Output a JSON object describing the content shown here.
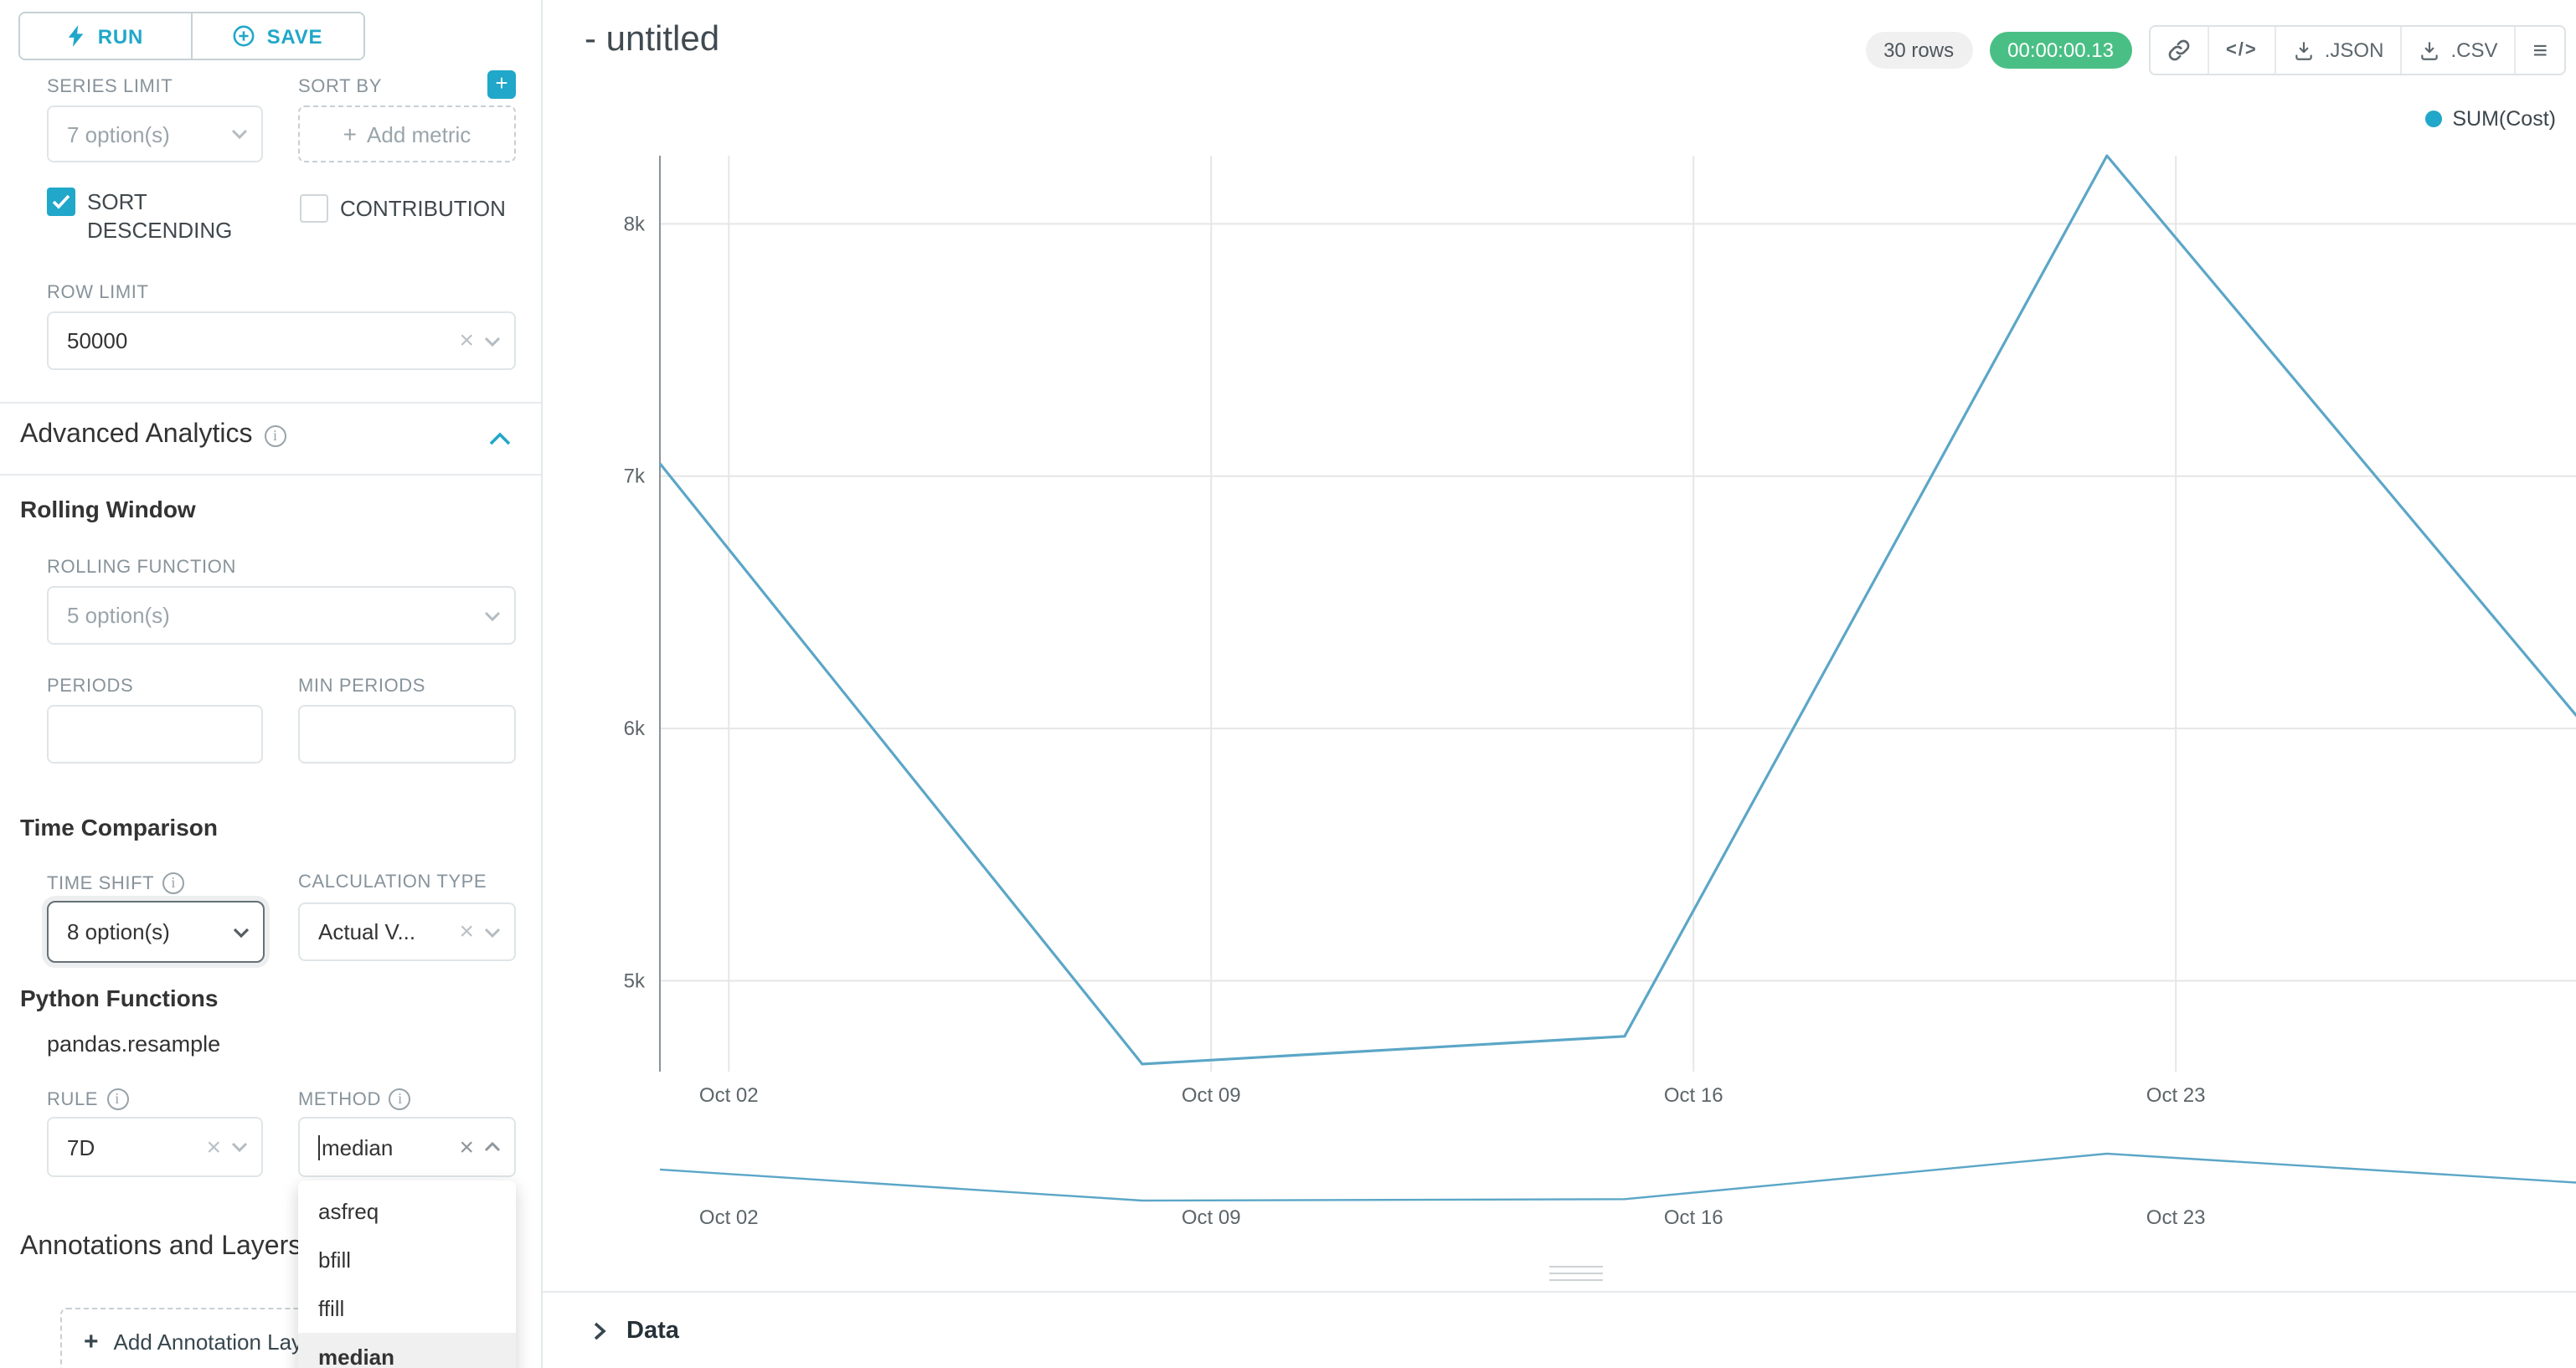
{
  "accent": {
    "primary": "#20a7c9",
    "timer_bg": "#4abf85"
  },
  "toolbar": {
    "run_label": "RUN",
    "save_label": "SAVE"
  },
  "sidebar": {
    "series_limit": {
      "label": "SERIES LIMIT",
      "value": "7 option(s)"
    },
    "sort_by": {
      "label": "SORT BY",
      "placeholder": "Add metric"
    },
    "sort_descending": {
      "label": "SORT DESCENDING",
      "checked": true
    },
    "contribution": {
      "label": "CONTRIBUTION",
      "checked": false
    },
    "row_limit": {
      "label": "ROW LIMIT",
      "value": "50000"
    },
    "advanced_analytics": {
      "title": "Advanced Analytics"
    },
    "rolling_window": {
      "title": "Rolling Window",
      "rolling_function_label": "ROLLING FUNCTION",
      "rolling_function_value": "5 option(s)",
      "periods_label": "PERIODS",
      "min_periods_label": "MIN PERIODS"
    },
    "time_comparison": {
      "title": "Time Comparison",
      "time_shift_label": "TIME SHIFT",
      "time_shift_value": "8 option(s)",
      "calculation_type_label": "CALCULATION TYPE",
      "calculation_type_value": "Actual V..."
    },
    "python_functions": {
      "title": "Python Functions",
      "subtitle": "pandas.resample",
      "rule_label": "RULE",
      "rule_value": "7D",
      "method_label": "METHOD",
      "method_value": "median"
    },
    "method_dropdown": {
      "options": [
        "asfreq",
        "bfill",
        "ffill",
        "median"
      ],
      "active_option": "median"
    },
    "annotations": {
      "title": "Annotations and Layers",
      "add_label": "Add Annotation Layer"
    }
  },
  "header": {
    "title": "- untitled",
    "rows_badge": "30 rows",
    "timer_badge": "00:00:00.13",
    "export_json_label": ".JSON",
    "export_csv_label": ".CSV"
  },
  "data_panel": {
    "title": "Data"
  },
  "chart_data": {
    "type": "line",
    "title": "",
    "xlabel": "",
    "ylabel": "",
    "legend": [
      {
        "label": "SUM(Cost)",
        "color": "#21a7c9"
      }
    ],
    "series": [
      {
        "name": "SUM(Cost)",
        "x_dates": [
          "Oct 01",
          "Oct 08",
          "Oct 15",
          "Oct 22",
          "Oct 29"
        ],
        "x_days": [
          0,
          7,
          14,
          21,
          28
        ],
        "values": [
          7050,
          4670,
          4780,
          8270,
          5990
        ]
      }
    ],
    "x_tick_days": [
      1,
      8,
      15,
      22
    ],
    "x_tick_labels": [
      "Oct 02",
      "Oct 09",
      "Oct 16",
      "Oct 23"
    ],
    "y_ticks": [
      8000,
      7000,
      6000,
      5000
    ],
    "y_tick_labels": [
      "8k",
      "7k",
      "6k",
      "5k"
    ],
    "ylim": [
      4640,
      8270
    ],
    "grid": true,
    "legend_position": "top-right",
    "line_color": "#5ba6c7"
  }
}
